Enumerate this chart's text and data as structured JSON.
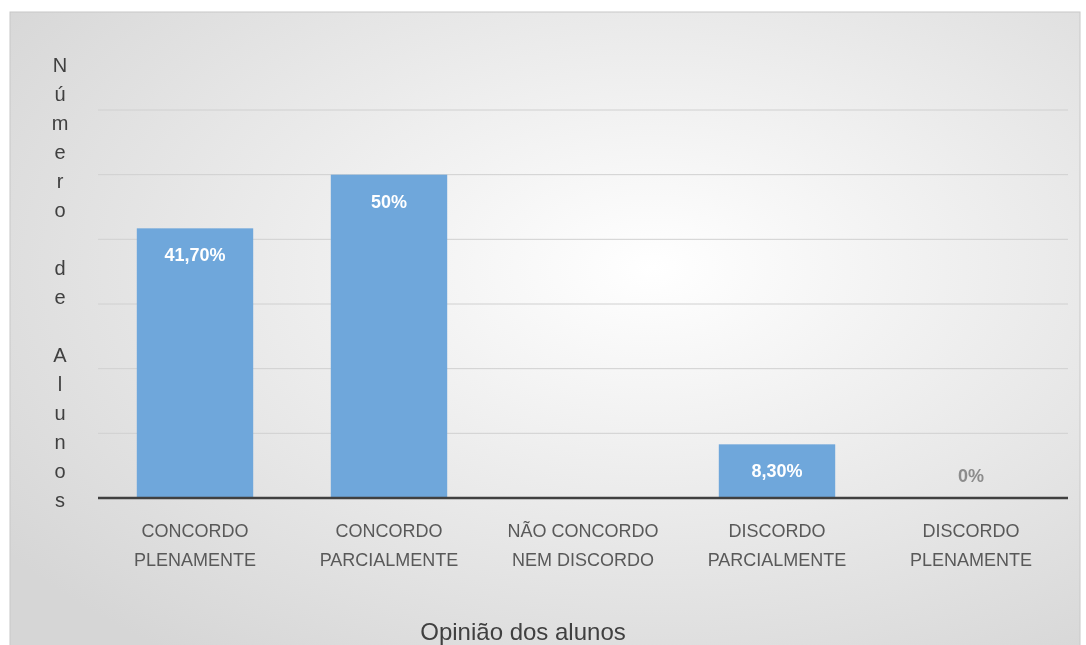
{
  "chart_data": {
    "type": "bar",
    "xlabel": "Opinião dos alunos",
    "ylabel": "Número de Alunos",
    "categories": [
      "CONCORDO PLENAMENTE",
      "CONCORDO PARCIALMENTE",
      "NÃO CONCORDO NEM DISCORDO",
      "DISCORDO PARCIALMENTE",
      "DISCORDO PLENAMENTE"
    ],
    "values": [
      41.7,
      50,
      0,
      8.3,
      0
    ],
    "value_labels": [
      "41,70%",
      "50%",
      null,
      "8,30%",
      "0%"
    ],
    "color": "#6fa7db",
    "ylim": [
      0,
      60
    ],
    "yticks": [
      {
        "value": 0,
        "label": null
      },
      {
        "value": 10,
        "label": null
      },
      {
        "value": 20,
        "label": null
      },
      {
        "value": 30,
        "label": null
      },
      {
        "value": 40,
        "label": null
      },
      {
        "value": 50,
        "label": null
      },
      {
        "value": 60,
        "label": null
      }
    ],
    "tick_labels": "x",
    "grid": "y"
  }
}
